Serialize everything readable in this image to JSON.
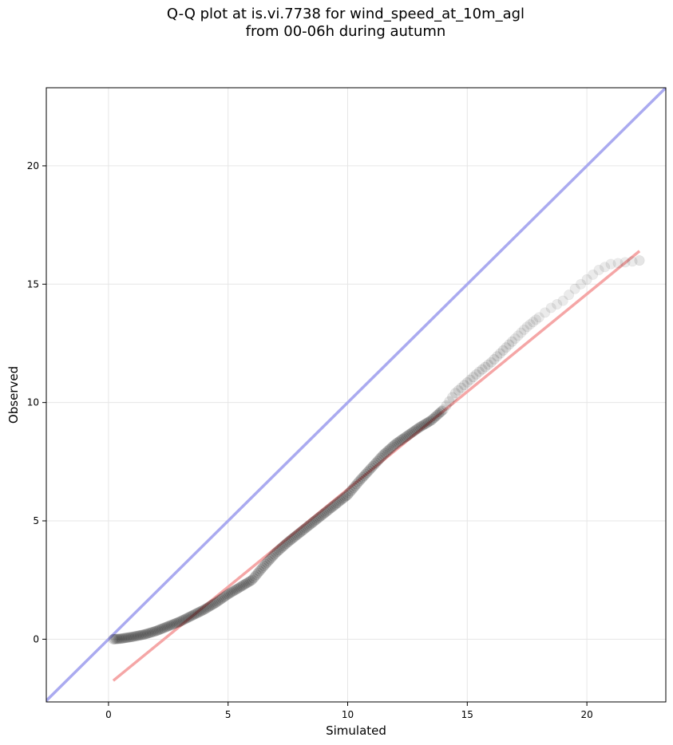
{
  "title": {
    "line1": "Q-Q plot at is.vi.7738 for wind_speed_at_10m_agl",
    "line2": "from 00-06h during autumn"
  },
  "colors": {
    "identity_line": "#aaaaf0",
    "fit_line": "#f5a6a6",
    "points": "#000000",
    "grid": "#e6e6e6",
    "axes": "#000000"
  },
  "chart_data": {
    "type": "scatter",
    "title": "Q-Q plot at is.vi.7738 for wind_speed_at_10m_agl from 00-06h during autumn",
    "xlabel": "Simulated",
    "ylabel": "Observed",
    "xlim": [
      -2.6,
      23.3
    ],
    "ylim": [
      -2.65,
      23.3
    ],
    "xticks": [
      0,
      5,
      10,
      15,
      20
    ],
    "yticks": [
      0,
      5,
      10,
      15,
      20
    ],
    "grid": true,
    "reference_lines": [
      {
        "name": "identity",
        "x": [
          -2.6,
          23.3
        ],
        "y": [
          -2.6,
          23.3
        ]
      },
      {
        "name": "fit",
        "x": [
          0.2,
          22.2
        ],
        "y": [
          -1.75,
          16.4
        ]
      }
    ],
    "quantiles": {
      "x": [
        0.2,
        0.5,
        1.0,
        1.5,
        2.0,
        2.5,
        3.0,
        3.5,
        4.0,
        4.5,
        5.0,
        5.5,
        6.0,
        6.5,
        7.0,
        7.5,
        8.0,
        8.5,
        9.0,
        9.5,
        10.0,
        10.5,
        11.0,
        11.5,
        12.0,
        12.5,
        13.0,
        13.5,
        14.0,
        14.5,
        15.0,
        15.5,
        16.0,
        16.5,
        17.0,
        17.5,
        18.0,
        18.5,
        19.0,
        19.5,
        20.0,
        20.5,
        21.0,
        22.2
      ],
      "y": [
        0.0,
        0.02,
        0.1,
        0.2,
        0.35,
        0.55,
        0.75,
        1.0,
        1.25,
        1.55,
        1.9,
        2.2,
        2.5,
        3.1,
        3.65,
        4.1,
        4.5,
        4.9,
        5.3,
        5.7,
        6.1,
        6.7,
        7.25,
        7.8,
        8.25,
        8.6,
        8.95,
        9.25,
        9.7,
        10.4,
        10.85,
        11.3,
        11.7,
        12.2,
        12.7,
        13.2,
        13.6,
        14.0,
        14.3,
        14.8,
        15.2,
        15.6,
        15.85,
        16.0
      ]
    }
  }
}
